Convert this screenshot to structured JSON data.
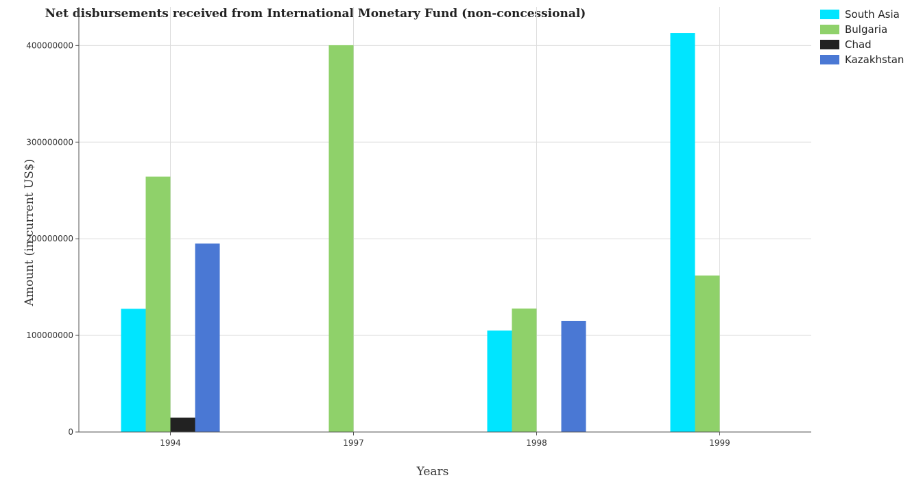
{
  "chart_data": {
    "type": "bar",
    "title": "Net disbursements received from International Monetary Fund (non-concessional)",
    "xlabel": "Years",
    "ylabel": "Amount (in current US$)",
    "categories": [
      "1994",
      "1997",
      "1998",
      "1999"
    ],
    "ylim": [
      0,
      440000000
    ],
    "yticks": [
      0,
      100000000,
      200000000,
      300000000,
      400000000
    ],
    "ytick_labels": [
      "0",
      "100000000",
      "200000000",
      "300000000",
      "400000000"
    ],
    "grid": true,
    "legend_position": "top-right",
    "series": [
      {
        "name": "South Asia",
        "color": "#00e5ff",
        "values": [
          127500000,
          0,
          105000000,
          413000000
        ]
      },
      {
        "name": "Bulgaria",
        "color": "#8fd16a",
        "values": [
          264300000,
          400300000,
          127800000,
          162000000
        ]
      },
      {
        "name": "Chad",
        "color": "#222222",
        "values": [
          14900000,
          0,
          0,
          0
        ]
      },
      {
        "name": "Kazakhstan",
        "color": "#4a78d4",
        "values": [
          195000000,
          0,
          115000000,
          0
        ]
      }
    ]
  }
}
